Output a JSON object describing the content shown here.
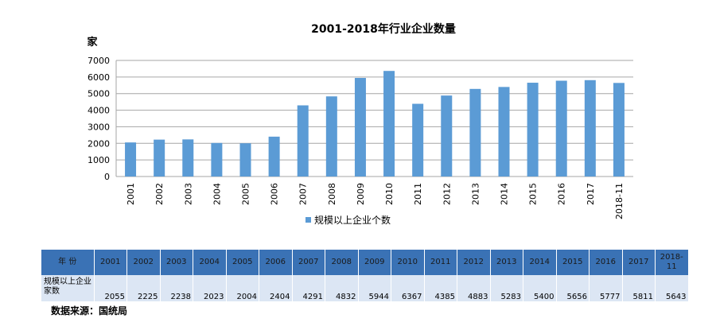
{
  "chart_data": {
    "type": "bar",
    "title": "2001-2018年行业企业数量",
    "ylabel": "家",
    "categories": [
      "2001",
      "2002",
      "2003",
      "2004",
      "2005",
      "2006",
      "2007",
      "2008",
      "2009",
      "2010",
      "2011",
      "2012",
      "2013",
      "2014",
      "2015",
      "2016",
      "2017",
      "2018-11"
    ],
    "series": [
      {
        "name": "规模以上企业个数",
        "values": [
          2055,
          2225,
          2238,
          2023,
          2004,
          2404,
          4291,
          4832,
          5944,
          6367,
          4385,
          4883,
          5283,
          5400,
          5656,
          5777,
          5811,
          5643
        ]
      }
    ],
    "ylim": [
      0,
      7000
    ],
    "yticks": [
      0,
      1000,
      2000,
      3000,
      4000,
      5000,
      6000,
      7000
    ],
    "grid": true,
    "legend": "bottom",
    "bar_color": "#5b9bd5",
    "grid_color": "#a6a6a6"
  },
  "table": {
    "header_label": "年 份",
    "row_label": "规模以上企业家数",
    "header_color": "#3a72b5",
    "row_color": "#dce6f4"
  },
  "source": "数据来源：国统局"
}
